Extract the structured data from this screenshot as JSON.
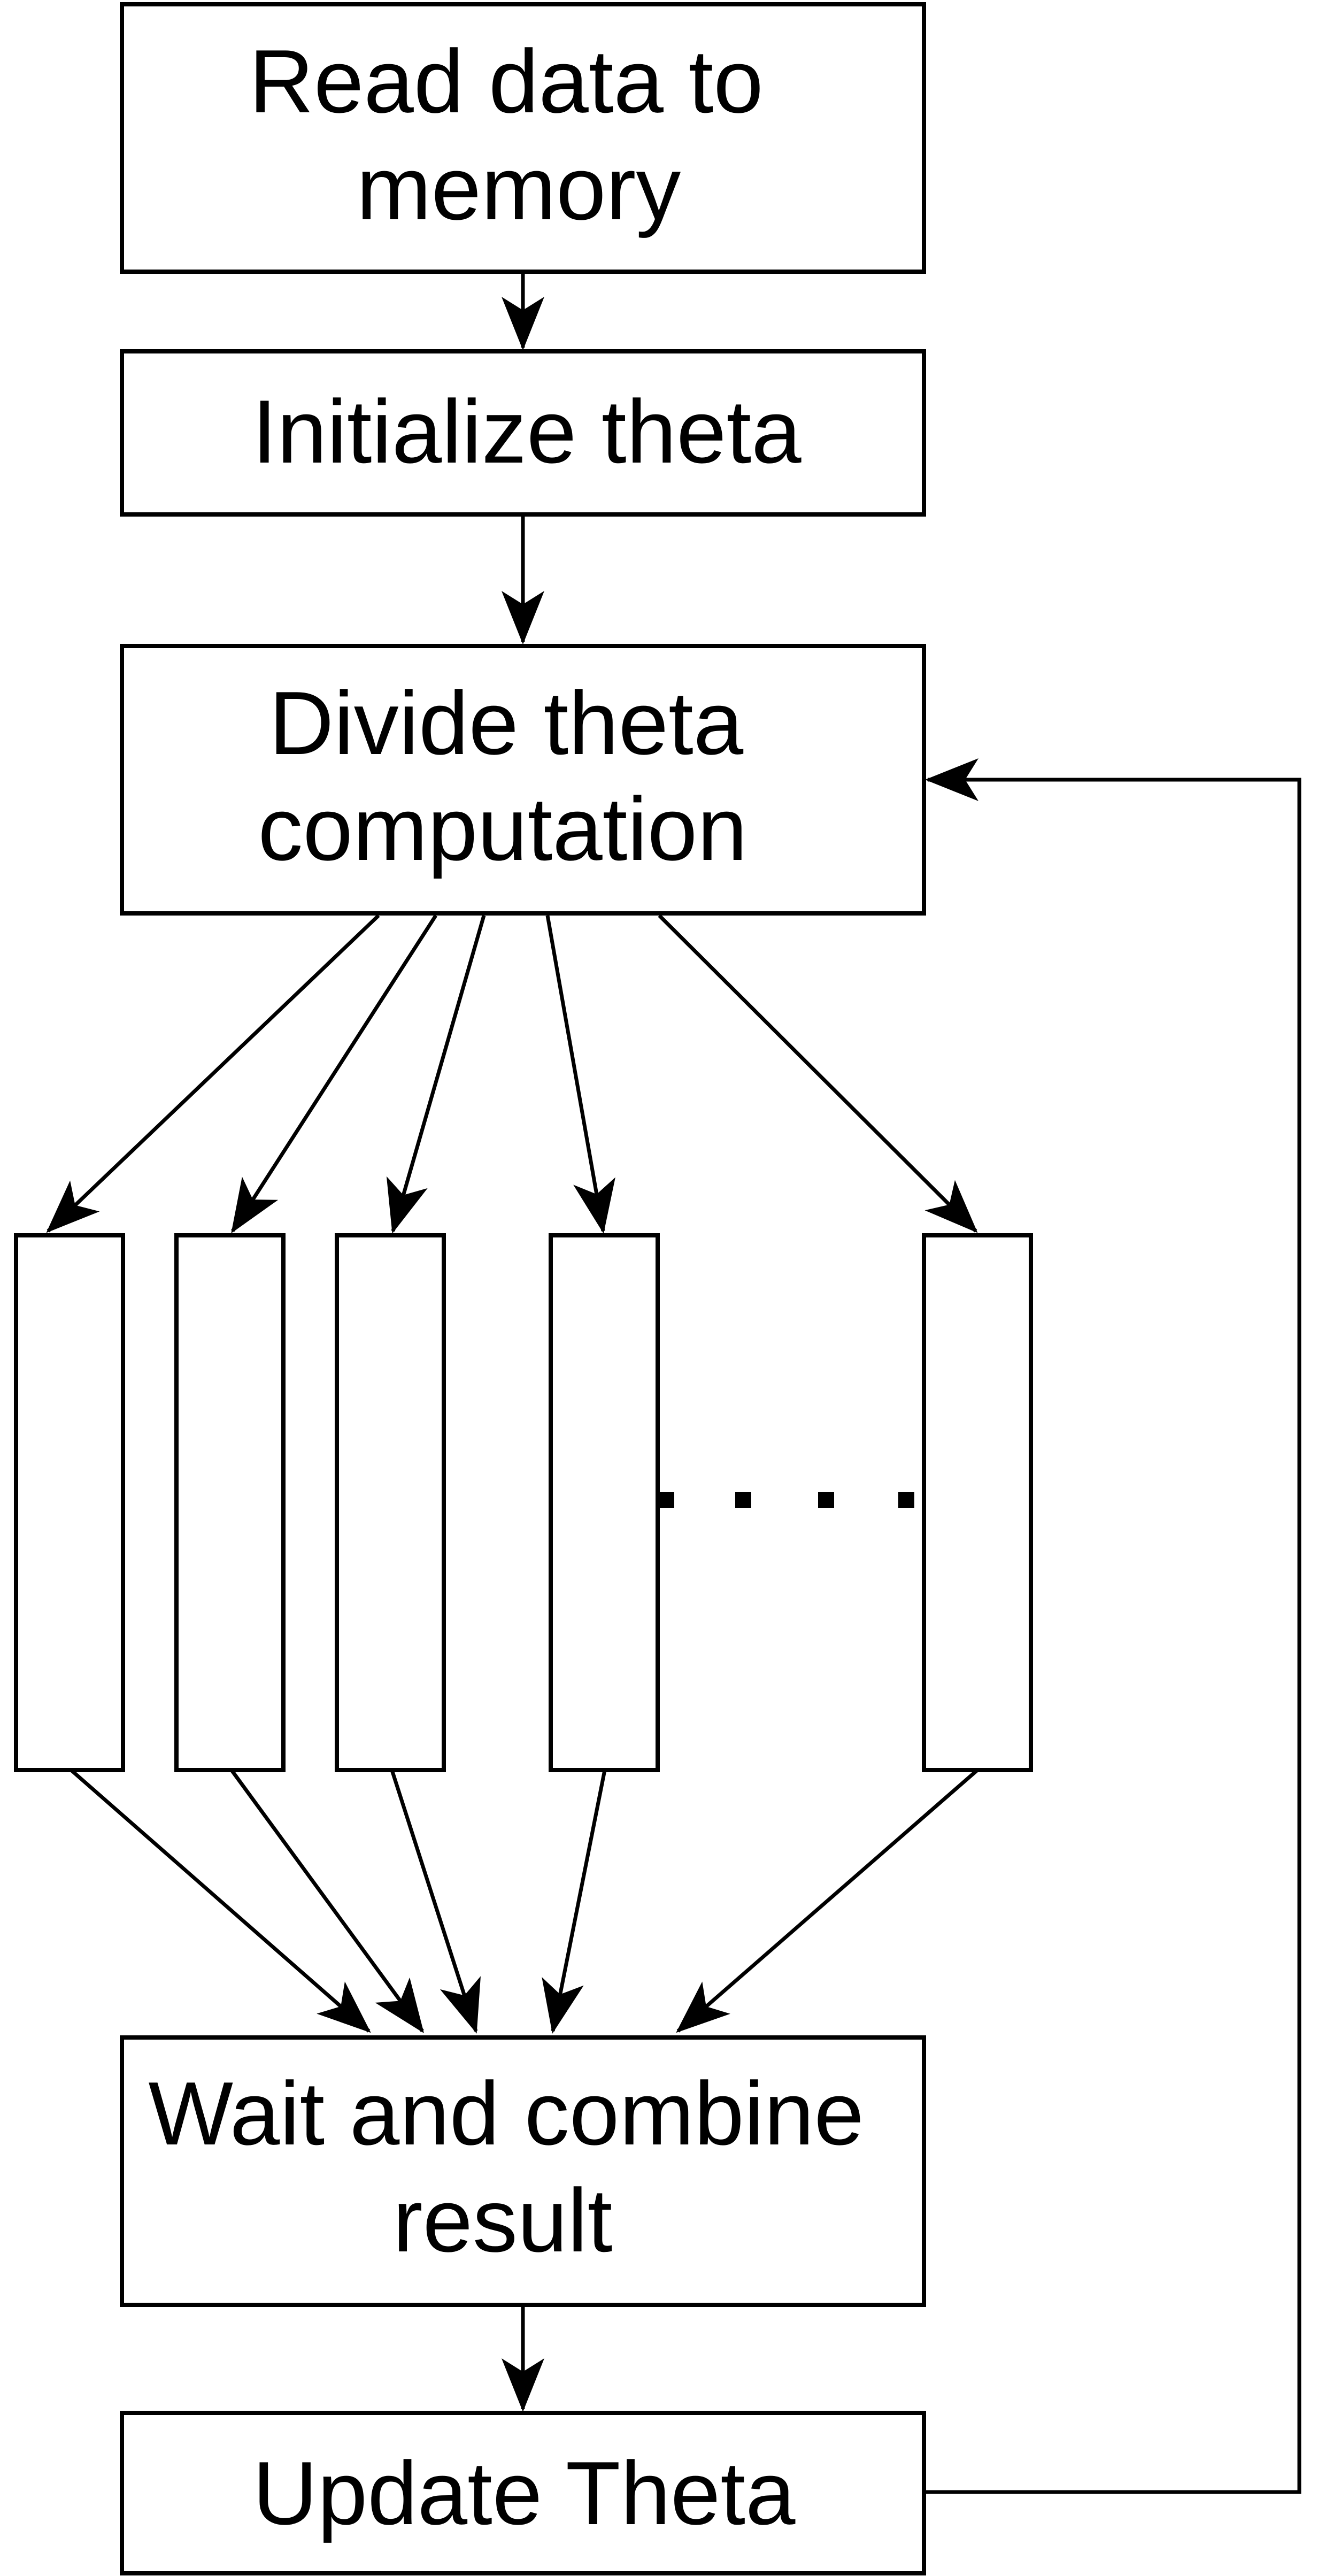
{
  "nodes": {
    "read_data": {
      "lines": [
        "Read data to",
        "memory"
      ]
    },
    "init_theta": {
      "lines": [
        "Initialize theta"
      ]
    },
    "divide": {
      "lines": [
        "Divide theta",
        "computation"
      ]
    },
    "wait_combine": {
      "lines": [
        "Wait and combine",
        "result"
      ]
    },
    "update": {
      "lines": [
        "Update Theta"
      ]
    }
  },
  "colors": {
    "stroke": "#000000",
    "background": "#ffffff"
  }
}
